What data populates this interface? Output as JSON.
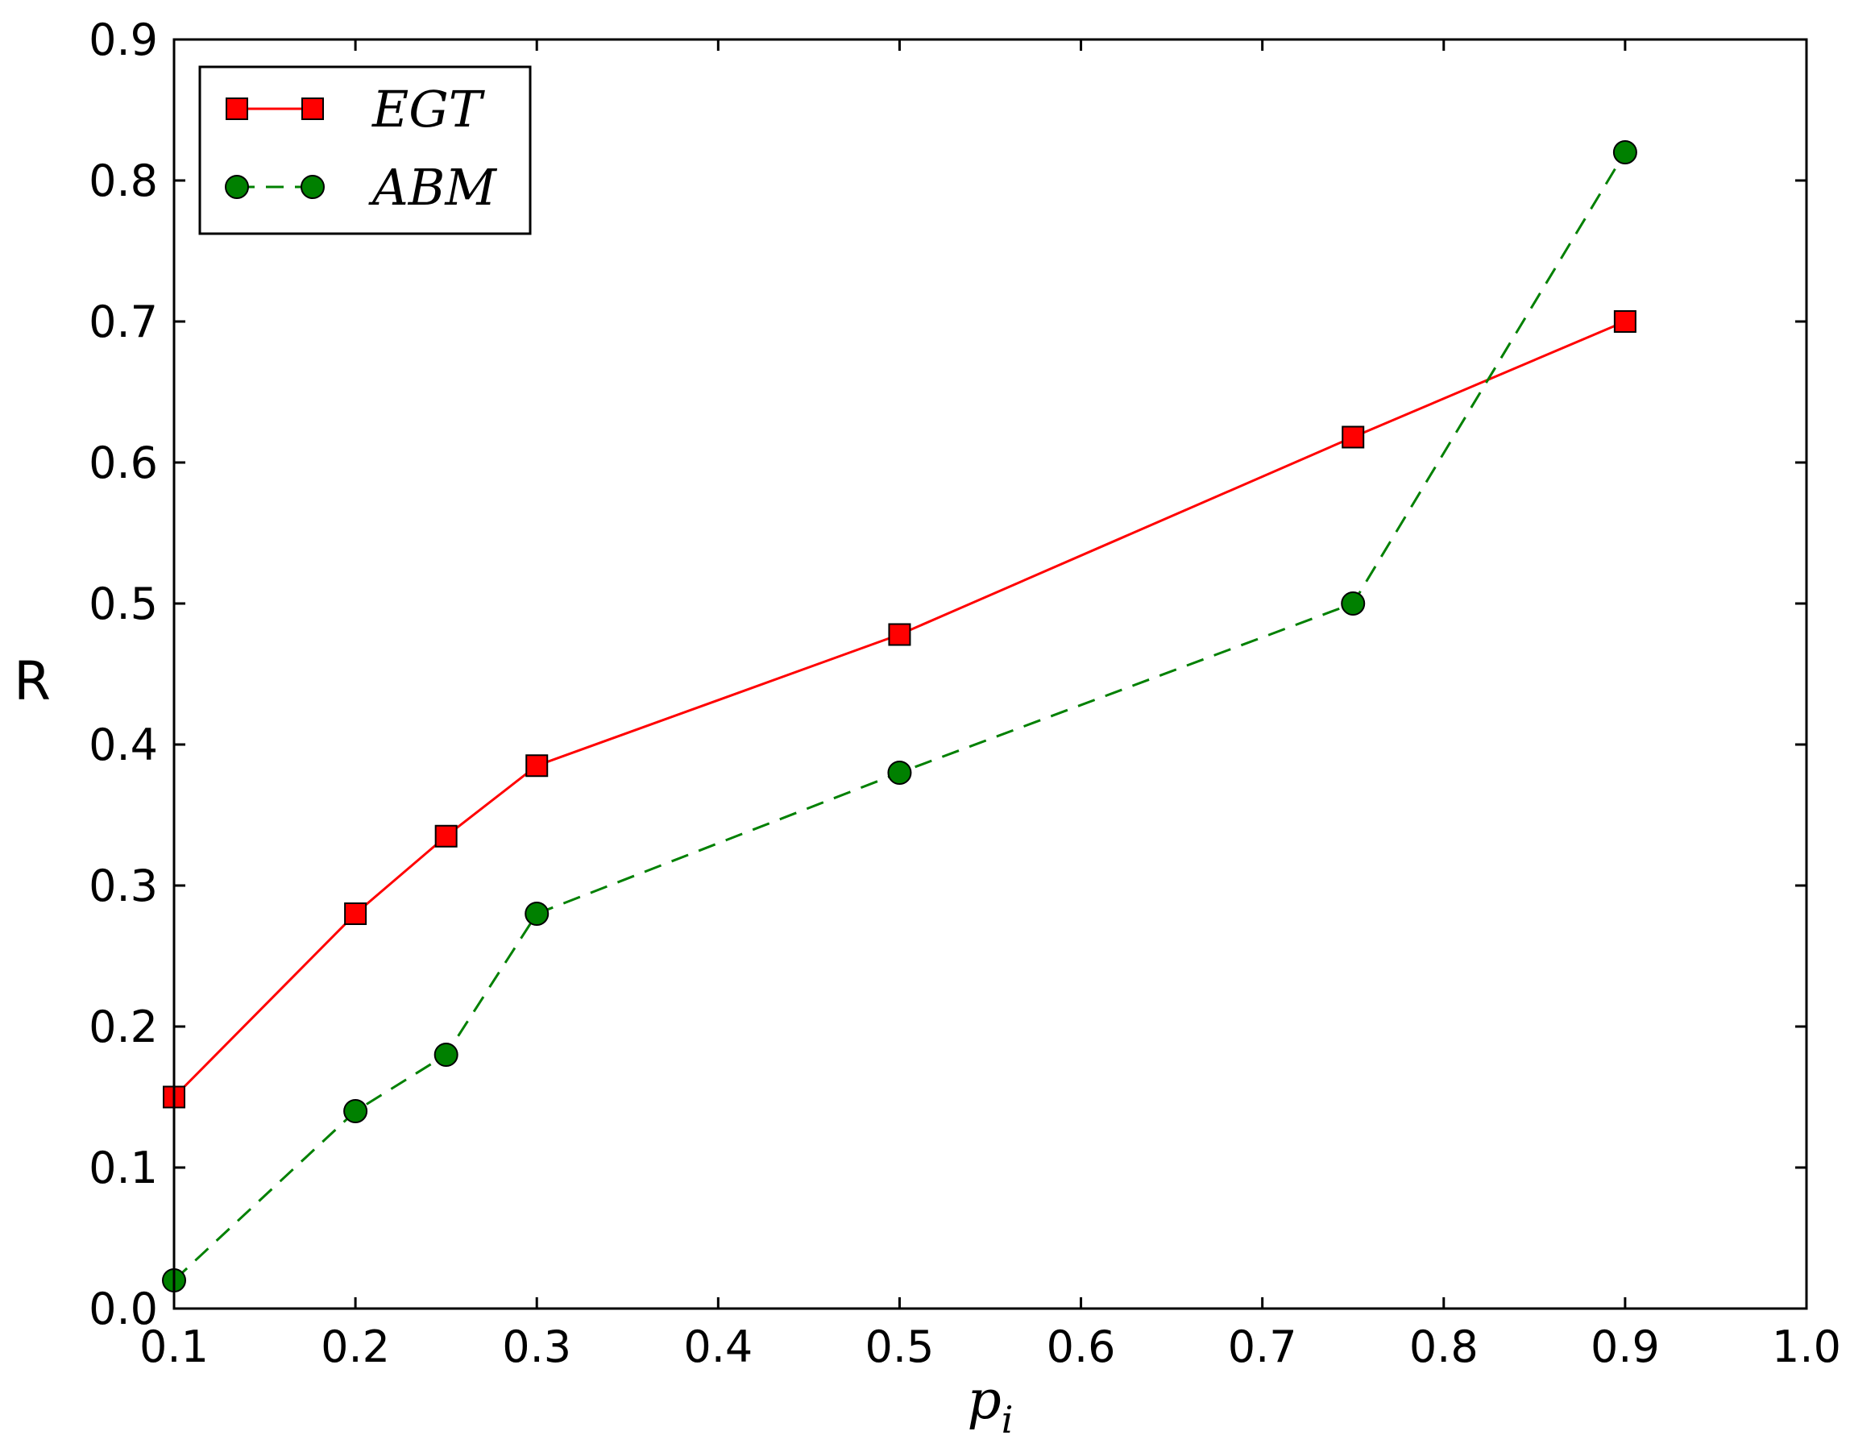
{
  "chart_data": {
    "type": "line",
    "title": "",
    "xlabel": "p",
    "xlabel_subscript": "i",
    "ylabel": "R",
    "xlim": [
      0.1,
      1.0
    ],
    "ylim": [
      0.0,
      0.9
    ],
    "xticks": [
      "0.1",
      "0.2",
      "0.3",
      "0.4",
      "0.5",
      "0.6",
      "0.7",
      "0.8",
      "0.9",
      "1.0"
    ],
    "yticks": [
      "0.0",
      "0.1",
      "0.2",
      "0.3",
      "0.4",
      "0.5",
      "0.6",
      "0.7",
      "0.8",
      "0.9"
    ],
    "grid": false,
    "legend_position": "upper-left",
    "series": [
      {
        "name": "EGT",
        "color": "#ff0000",
        "marker": "square",
        "line_style": "solid",
        "x": [
          0.1,
          0.2,
          0.25,
          0.3,
          0.5,
          0.75,
          0.9
        ],
        "y": [
          0.15,
          0.28,
          0.335,
          0.385,
          0.478,
          0.618,
          0.7
        ]
      },
      {
        "name": "ABM",
        "color": "#008000",
        "marker": "circle",
        "line_style": "dashed",
        "x": [
          0.1,
          0.2,
          0.25,
          0.3,
          0.5,
          0.75,
          0.9
        ],
        "y": [
          0.02,
          0.14,
          0.18,
          0.28,
          0.38,
          0.5,
          0.82
        ]
      }
    ]
  }
}
